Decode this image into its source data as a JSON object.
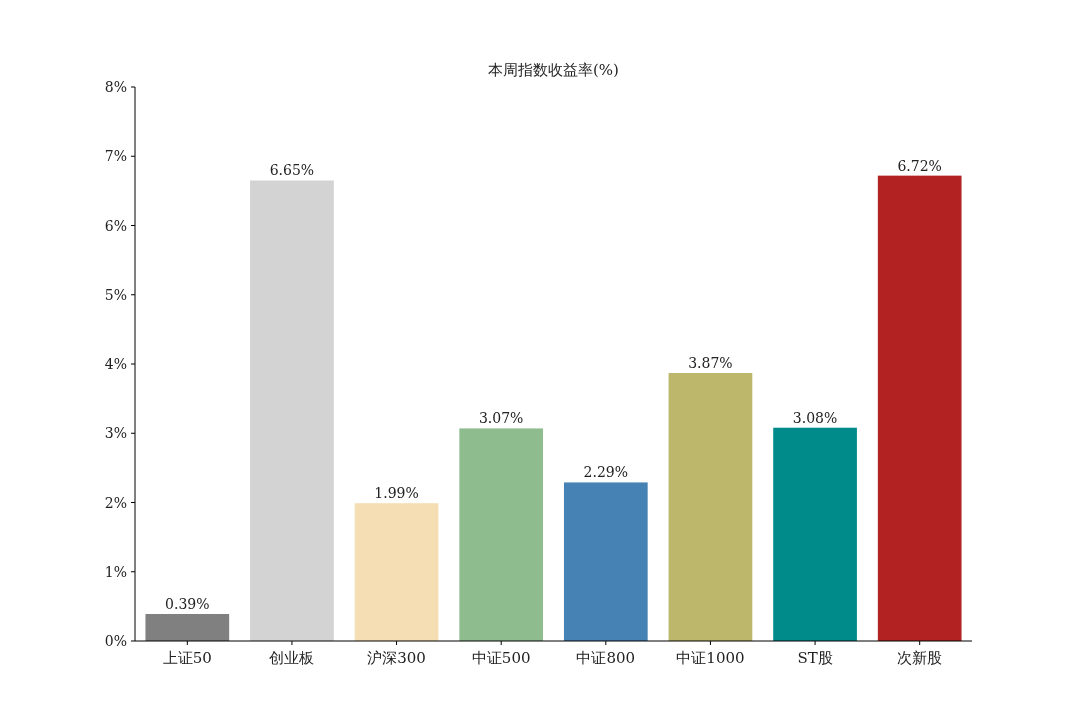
{
  "chart_data": {
    "type": "bar",
    "title": "本周指数收益率(%)",
    "categories": [
      "上证50",
      "创业板",
      "沪深300",
      "中证500",
      "中证800",
      "中证1000",
      "ST股",
      "次新股"
    ],
    "values": [
      0.39,
      6.65,
      1.99,
      3.07,
      2.29,
      3.87,
      3.08,
      6.72
    ],
    "colors": [
      "#808080",
      "#d3d3d3",
      "#f5deb3",
      "#8fbc8f",
      "#4682b4",
      "#bdb76b",
      "#008b8b",
      "#b22222"
    ],
    "value_labels": [
      "0.39%",
      "6.65%",
      "1.99%",
      "3.07%",
      "2.29%",
      "3.87%",
      "3.08%",
      "6.72%"
    ],
    "ylim": [
      0,
      8
    ],
    "yticks": [
      {
        "value": 0,
        "label": "0%"
      },
      {
        "value": 1,
        "label": "1%"
      },
      {
        "value": 2,
        "label": "2%"
      },
      {
        "value": 3,
        "label": "3%"
      },
      {
        "value": 4,
        "label": "4%"
      },
      {
        "value": 5,
        "label": "5%"
      },
      {
        "value": 6,
        "label": "6%"
      },
      {
        "value": 7,
        "label": "7%"
      },
      {
        "value": 8,
        "label": "8%"
      }
    ],
    "grid": false
  }
}
